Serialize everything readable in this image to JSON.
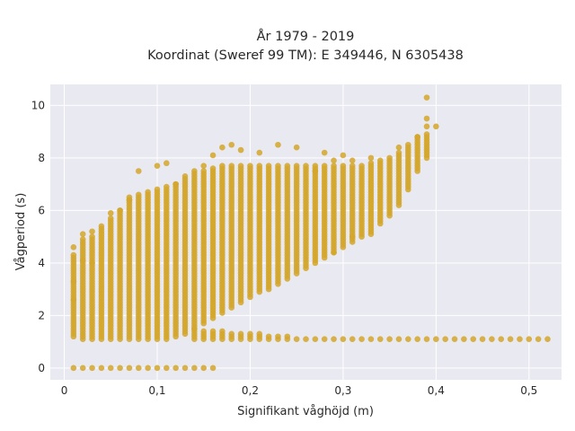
{
  "chart_data": {
    "type": "scatter",
    "title_line1": "År 1979 - 2019",
    "title_line2": "Koordinat (Sweref 99 TM): E 349446, N 6305438",
    "xlabel": "Signifikant våghöjd (m)",
    "ylabel": "Vågperiod (s)",
    "xlim": [
      -0.015,
      0.535
    ],
    "ylim": [
      -0.45,
      10.8
    ],
    "x_ticks": [
      0,
      0.1,
      0.2,
      0.3,
      0.4,
      0.5
    ],
    "x_tick_labels": [
      "0",
      "0,1",
      "0,2",
      "0,3",
      "0,4",
      "0,5"
    ],
    "y_ticks": [
      0,
      2,
      4,
      6,
      8,
      10
    ],
    "y_tick_labels": [
      "0",
      "2",
      "4",
      "6",
      "8",
      "10"
    ],
    "grid": true,
    "colors": {
      "marker": "#d4a62a",
      "plot_bg": "#e9e9f2",
      "grid": "#ffffff"
    },
    "main_band": {
      "description_note": "",
      "x_start": 0.01,
      "x_end": 0.39,
      "x_step": 0.01,
      "y_low": [
        1.2,
        1.1,
        1.1,
        1.1,
        1.1,
        1.1,
        1.1,
        1.1,
        1.1,
        1.1,
        1.1,
        1.2,
        1.3,
        1.5,
        1.7,
        1.9,
        2.1,
        2.3,
        2.5,
        2.7,
        2.9,
        3.0,
        3.2,
        3.4,
        3.6,
        3.8,
        4.0,
        4.2,
        4.4,
        4.6,
        4.8,
        5.0,
        5.2,
        5.5,
        5.8,
        6.2,
        6.8,
        7.5,
        8.0
      ],
      "y_high": [
        4.3,
        4.9,
        5.0,
        5.3,
        5.7,
        6.0,
        6.5,
        6.6,
        6.7,
        6.8,
        6.9,
        7.0,
        7.3,
        7.5,
        7.5,
        7.6,
        7.7,
        7.7,
        7.7,
        7.7,
        7.7,
        7.7,
        7.7,
        7.7,
        7.7,
        7.7,
        7.7,
        7.7,
        7.7,
        7.7,
        7.7,
        7.7,
        7.8,
        7.9,
        8.0,
        8.2,
        8.5,
        8.8,
        8.9
      ]
    },
    "low_band": {
      "x_start": 0.14,
      "x_end": 0.52,
      "x_step": 0.01,
      "y_low": 1.1,
      "y_high_start": 1.5,
      "y_high_end_x": 0.28,
      "y_high_end": 1.1
    },
    "zero_row": {
      "x_start": 0.01,
      "x_end": 0.16,
      "x_step": 0.01,
      "y": 0
    },
    "outliers": [
      [
        0.01,
        4.6
      ],
      [
        0.01,
        3.3
      ],
      [
        0.01,
        2.6
      ],
      [
        0.02,
        5.1
      ],
      [
        0.02,
        4.1
      ],
      [
        0.03,
        5.2
      ],
      [
        0.03,
        4.0
      ],
      [
        0.04,
        5.4
      ],
      [
        0.05,
        5.9
      ],
      [
        0.06,
        6.0
      ],
      [
        0.07,
        6.4
      ],
      [
        0.08,
        7.5
      ],
      [
        0.1,
        7.7
      ],
      [
        0.11,
        7.8
      ],
      [
        0.12,
        7.0
      ],
      [
        0.15,
        7.7
      ],
      [
        0.16,
        8.1
      ],
      [
        0.17,
        8.4
      ],
      [
        0.18,
        8.5
      ],
      [
        0.19,
        8.3
      ],
      [
        0.21,
        8.2
      ],
      [
        0.23,
        8.5
      ],
      [
        0.25,
        8.4
      ],
      [
        0.27,
        7.5
      ],
      [
        0.28,
        8.2
      ],
      [
        0.29,
        7.9
      ],
      [
        0.3,
        8.1
      ],
      [
        0.31,
        7.9
      ],
      [
        0.33,
        8.0
      ],
      [
        0.36,
        8.4
      ],
      [
        0.38,
        8.8
      ],
      [
        0.39,
        9.2
      ],
      [
        0.39,
        9.5
      ],
      [
        0.39,
        10.3
      ],
      [
        0.4,
        9.2
      ],
      [
        0.29,
        4.4
      ],
      [
        0.31,
        5.0
      ],
      [
        0.33,
        5.1
      ]
    ]
  }
}
